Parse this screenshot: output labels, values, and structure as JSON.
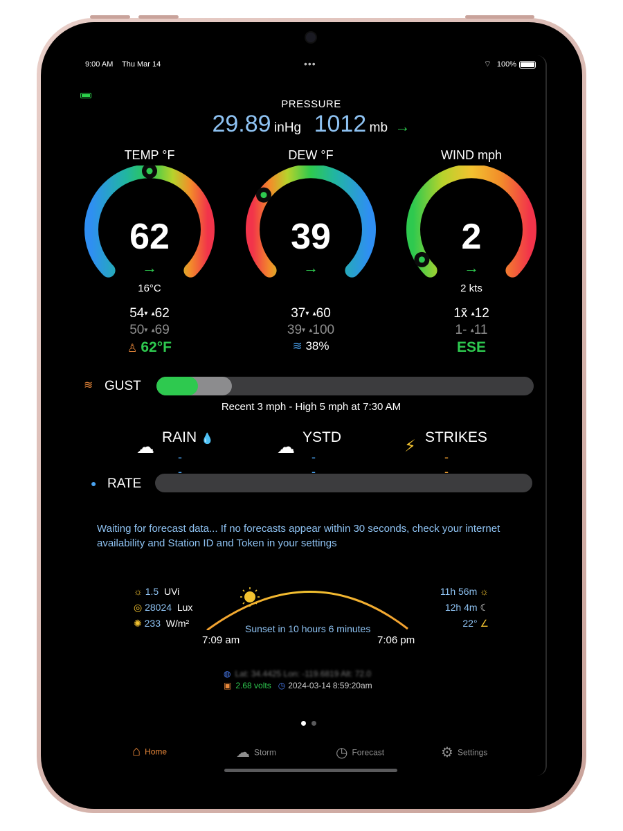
{
  "status": {
    "time": "9:00 AM",
    "date": "Thu Mar 14",
    "dots": "•••",
    "wifi": "⌔",
    "battery": "100%"
  },
  "pressure": {
    "title": "PRESSURE",
    "inhg": "29.89",
    "inhg_unit": "inHg",
    "mb": "1012",
    "mb_unit": "mb",
    "trend": "→"
  },
  "temp": {
    "title": "TEMP °F",
    "value": "62",
    "trend": "→",
    "sub": "16°C",
    "lo": "54",
    "hi": "62",
    "lo2": "50",
    "hi2": "69",
    "feels": "62°F",
    "level": 0.5
  },
  "dew": {
    "title": "DEW °F",
    "value": "39",
    "trend": "→",
    "lo": "37",
    "hi": "60",
    "lo2": "39",
    "hi2": "100",
    "humidity": "38%",
    "level": 0.3
  },
  "wind": {
    "title": "WIND mph",
    "value": "2",
    "trend": "→",
    "sub": "2 kts",
    "l1a": "1x̄",
    "l1b": "12",
    "l2a": "1-",
    "l2b": "11",
    "direction": "ESE",
    "level": 0.05
  },
  "gust": {
    "label": "GUST",
    "recent_fraction": 0.11,
    "high_fraction": 0.2,
    "caption": "Recent 3 mph  -  High 5 mph at 7:30 AM"
  },
  "rain": {
    "rain_label": "RAIN",
    "rain_value": "---",
    "ystd_label": "YSTD",
    "ystd_value": "---",
    "strikes_label": "STRIKES",
    "strikes_value": "---"
  },
  "rate": {
    "label": "RATE"
  },
  "forecast_message": "Waiting for forecast data... If no forecasts appear within 30 seconds, check your internet availability and Station ID and Token in your settings",
  "sun": {
    "uvi": "1.5",
    "uvi_unit": "UVi",
    "lux": "28024",
    "lux_unit": "Lux",
    "wm2": "233",
    "wm2_unit": "W/m²",
    "sunrise": "7:09 am",
    "sunset": "7:06 pm",
    "caption": "Sunset in 10 hours 6 minutes",
    "day_length": "11h 56m",
    "night_length": "12h 4m",
    "elevation": "22°"
  },
  "location": {
    "text": "Lat: 34.4425  Lon: -119.6819  Alt: 72.0"
  },
  "meta": {
    "volts": "2.68 volts",
    "timestamp": "2024-03-14 8:59:20am"
  },
  "tabs": [
    {
      "label": "Home",
      "icon": "home-icon"
    },
    {
      "label": "Storm",
      "icon": "storm-cloud-icon"
    },
    {
      "label": "Forecast",
      "icon": "clock-icon"
    },
    {
      "label": "Settings",
      "icon": "gear-icon"
    }
  ],
  "colors": {
    "accent_home": "#e7873a",
    "green": "#2ec94f",
    "blue": "#8ec2f2",
    "inactive": "#8e8e8e"
  }
}
